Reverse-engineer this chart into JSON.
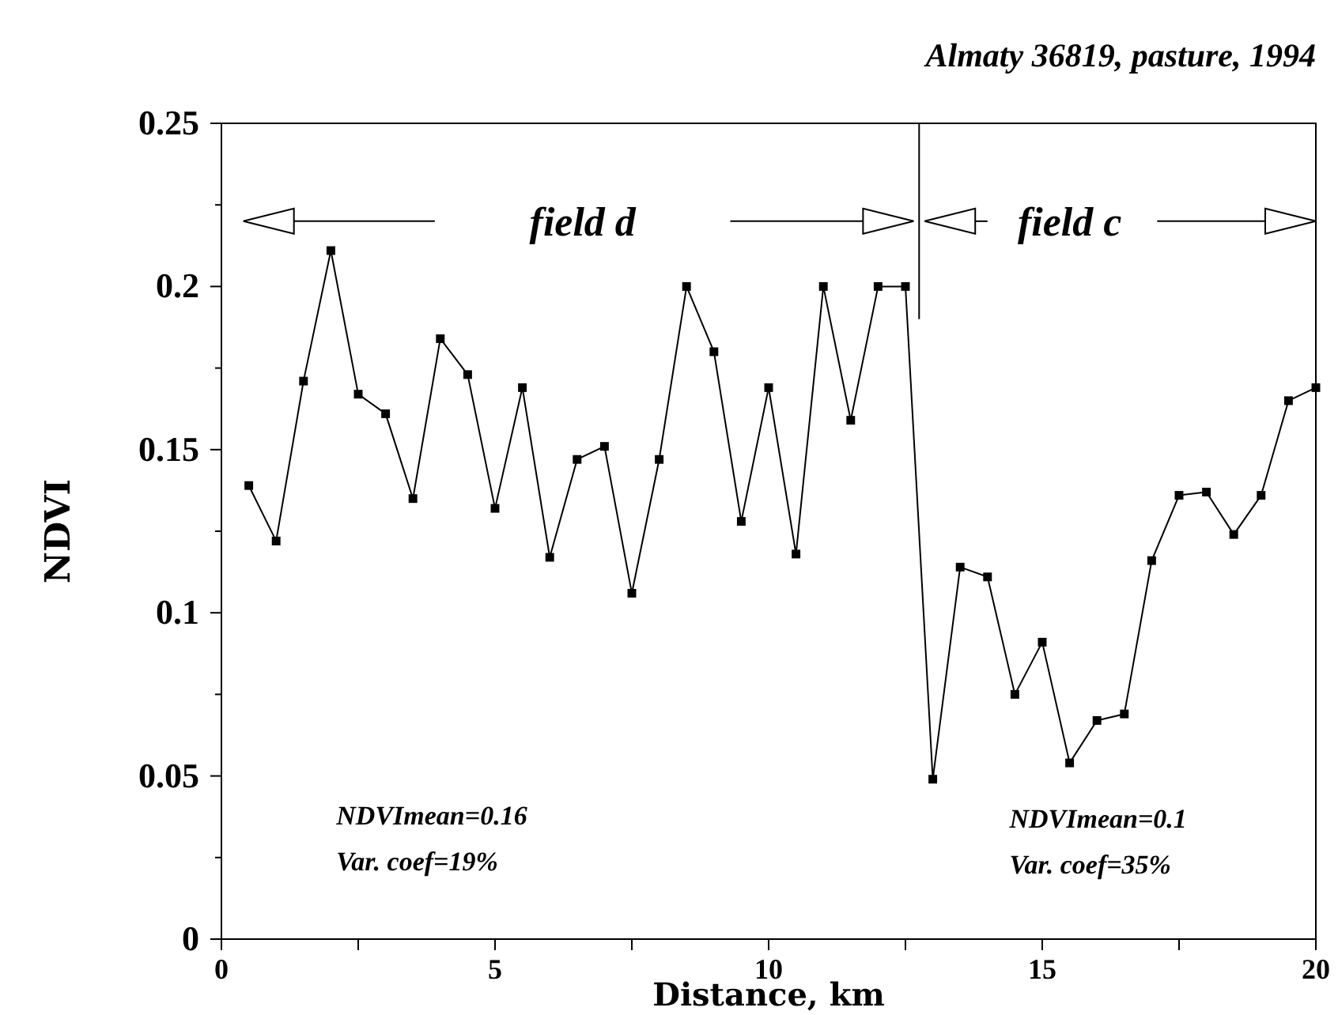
{
  "chart_data": {
    "type": "line",
    "title": "Almaty 36819, pasture, 1994",
    "xlabel": "Distance, km",
    "ylabel": "NDVI",
    "x": [
      0.5,
      1,
      1.5,
      2,
      2.5,
      3,
      3.5,
      4,
      4.5,
      5,
      5.5,
      6,
      6.5,
      7,
      7.5,
      8,
      8.5,
      9,
      9.5,
      10,
      10.5,
      11,
      11.5,
      12,
      12.5,
      13,
      13.5,
      14,
      14.5,
      15,
      15.5,
      16,
      16.5,
      17,
      17.5,
      18,
      18.5,
      19,
      19.5,
      20
    ],
    "series": [
      {
        "color": "#000000",
        "values": [
          0.139,
          0.122,
          0.171,
          0.211,
          0.167,
          0.161,
          0.135,
          0.184,
          0.173,
          0.132,
          0.169,
          0.117,
          0.147,
          0.151,
          0.106,
          0.147,
          0.2,
          0.18,
          0.128,
          0.169,
          0.118,
          0.2,
          0.159,
          0.2,
          0.2,
          0.049,
          0.114,
          0.111,
          0.075,
          0.091,
          0.054,
          0.067,
          0.069,
          0.116,
          0.136,
          0.137,
          0.124,
          0.136,
          0.165,
          0.169
        ]
      }
    ],
    "xlim": [
      0,
      20
    ],
    "ylim": [
      0,
      0.25
    ],
    "xticks": [
      0,
      {
        "value": 2.5,
        "label": null
      },
      5,
      {
        "value": 7.5,
        "label": null
      },
      10,
      {
        "value": 12.5,
        "label": null
      },
      15,
      {
        "value": 17.5,
        "label": null
      },
      20
    ],
    "yticks": [
      0,
      {
        "value": 0.025,
        "label": null
      },
      0.05,
      {
        "value": 0.075,
        "label": null
      },
      0.1,
      {
        "value": 0.125,
        "label": null
      },
      0.15,
      {
        "value": 0.175,
        "label": null
      },
      0.2,
      {
        "value": 0.225,
        "label": null
      },
      0.25
    ],
    "ref_lines": [
      {
        "axis": "x",
        "value": 12.75,
        "color": "#000000"
      }
    ],
    "annotations": [
      "field d",
      "field c",
      "NDVImean=0.16",
      "Var. coef=19%",
      "NDVImean=0.1",
      "Var. coef=35%"
    ],
    "grid": false,
    "marker": "square",
    "line_style": "solid"
  }
}
